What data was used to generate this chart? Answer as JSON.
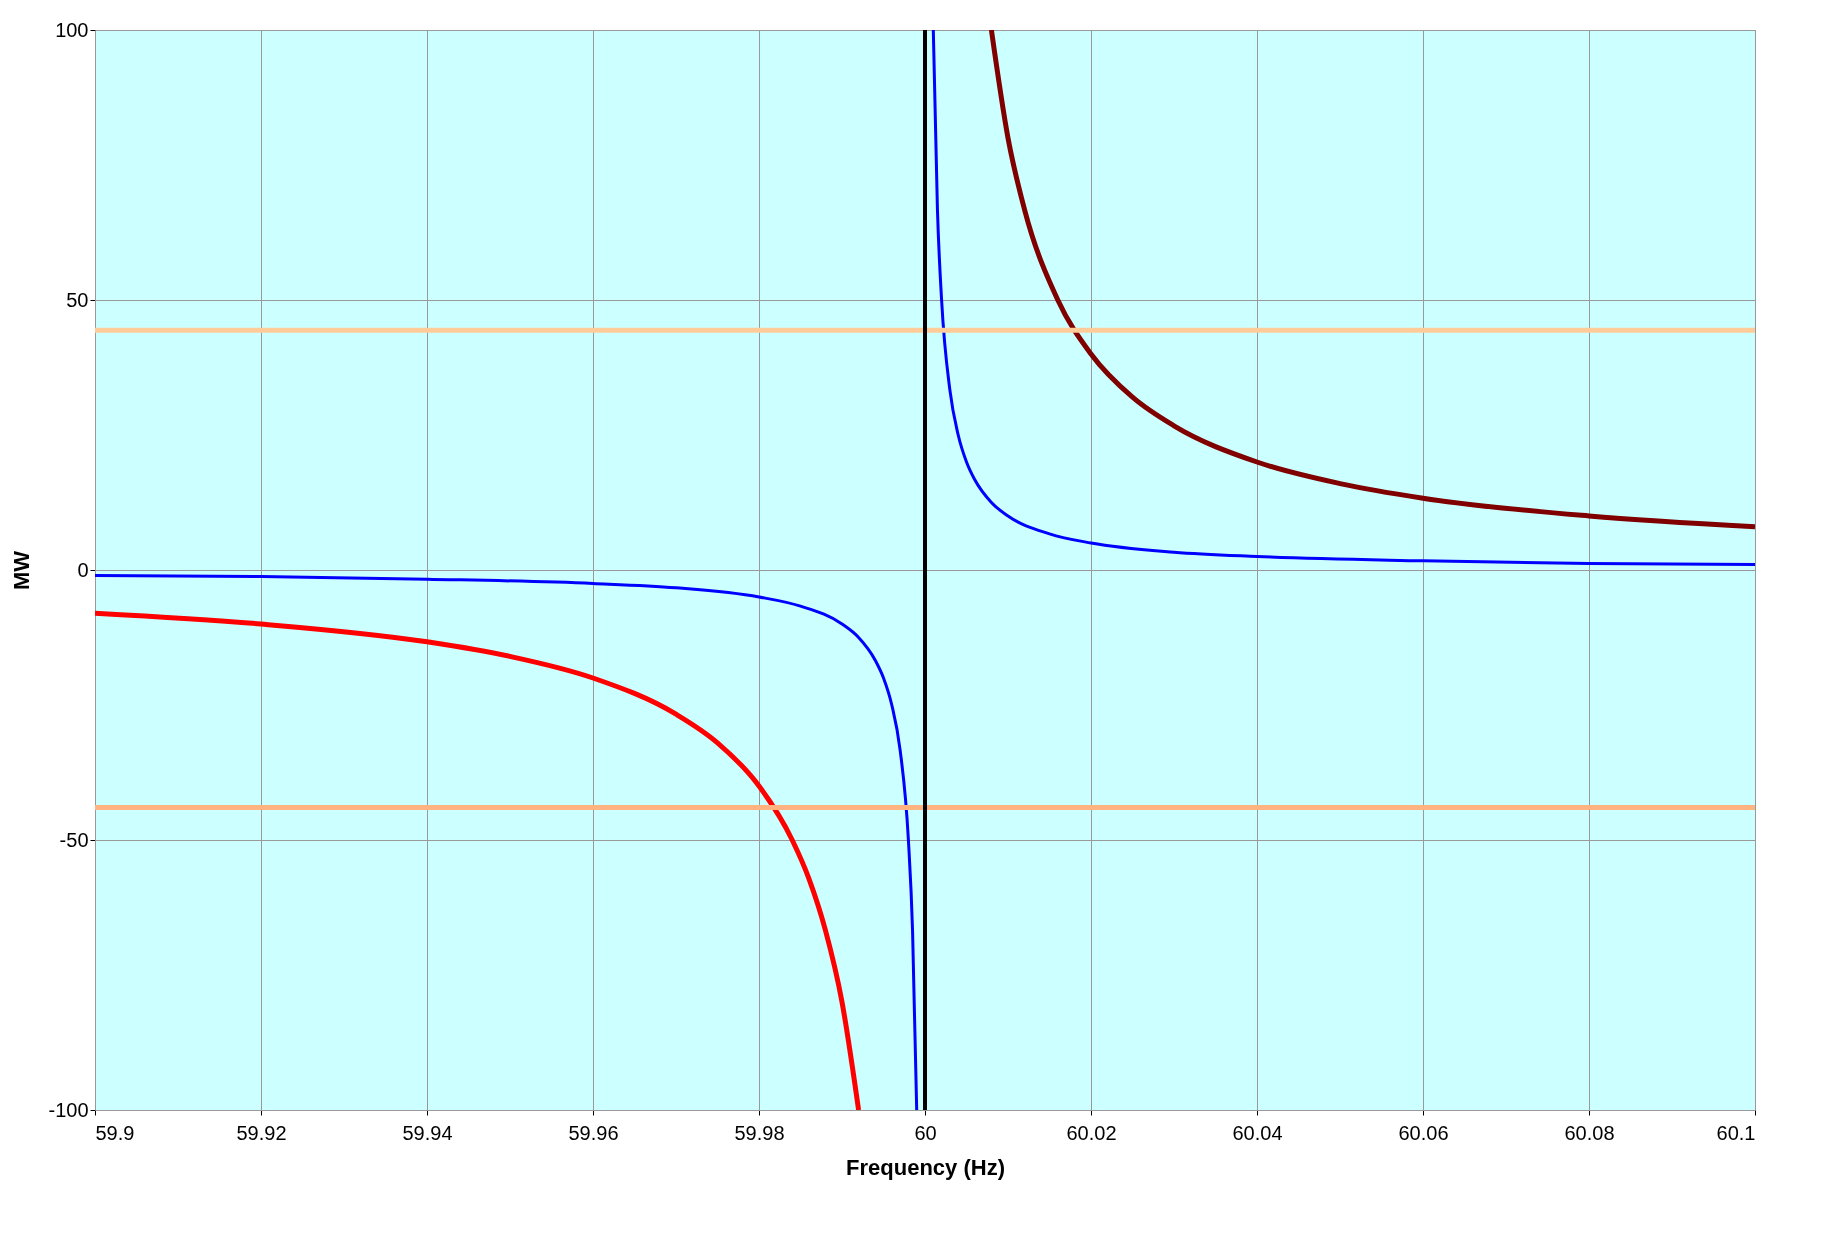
{
  "chart_data": {
    "type": "line",
    "xlabel": "Frequency (Hz)",
    "ylabel": "MW",
    "xlim": [
      59.9,
      60.1
    ],
    "xticks": [
      59.9,
      59.92,
      59.94,
      59.96,
      59.98,
      60,
      60.02,
      60.04,
      60.06,
      60.08,
      60.1
    ],
    "ylim": [
      -100,
      100
    ],
    "yticks": [
      -100,
      -50,
      0,
      50,
      100
    ],
    "grid": true,
    "series": [
      {
        "color": "#0000ff",
        "x": [
          59.9,
          59.92,
          59.94,
          59.96,
          59.97,
          59.98,
          59.985,
          59.99,
          59.992,
          59.994,
          59.995,
          59.996,
          59.997,
          59.998,
          59.9985,
          59.999,
          60,
          60.001,
          60.0015,
          60.002,
          60.003,
          60.004,
          60.005,
          60.006,
          60.008,
          60.01,
          60.015,
          60.02,
          60.03,
          60.04,
          60.06,
          60.08,
          60.1
        ],
        "values": [
          -1,
          -1.2,
          -1.7,
          -2.5,
          -3.3,
          -5,
          -6.7,
          -10,
          -12.5,
          -16.7,
          -20,
          -25,
          -33.3,
          -50,
          -66.7,
          -100,
          null,
          100,
          66.7,
          50,
          33.3,
          25,
          20,
          16.7,
          12.5,
          10,
          6.7,
          5,
          3.3,
          2.5,
          1.7,
          1.2,
          1
        ]
      },
      {
        "color": "#ff0000",
        "x": [
          59.9,
          59.92,
          59.94,
          59.95,
          59.96,
          59.97,
          59.975,
          59.98,
          59.984,
          59.986,
          59.988,
          59.99,
          59.992
        ],
        "values": [
          -8,
          -10,
          -13.3,
          -16,
          -20,
          -26.7,
          -32,
          -40,
          -50,
          -57.1,
          -66.7,
          -80,
          -100
        ]
      },
      {
        "color": "#800000",
        "x": [
          60.008,
          60.01,
          60.012,
          60.016,
          60.02,
          60.025,
          60.03,
          60.04,
          60.05,
          60.06,
          60.08,
          60.1
        ],
        "values": [
          100,
          80,
          66.7,
          50,
          40,
          32,
          26.7,
          20,
          16,
          13.3,
          10,
          8
        ]
      }
    ],
    "ref_lines": [
      {
        "axis": "y",
        "value": 44.4,
        "color": "#ffcc99"
      },
      {
        "axis": "y",
        "value": -44,
        "color": "#ffb380"
      },
      {
        "axis": "x",
        "value": 60,
        "color": "#000000"
      }
    ]
  }
}
